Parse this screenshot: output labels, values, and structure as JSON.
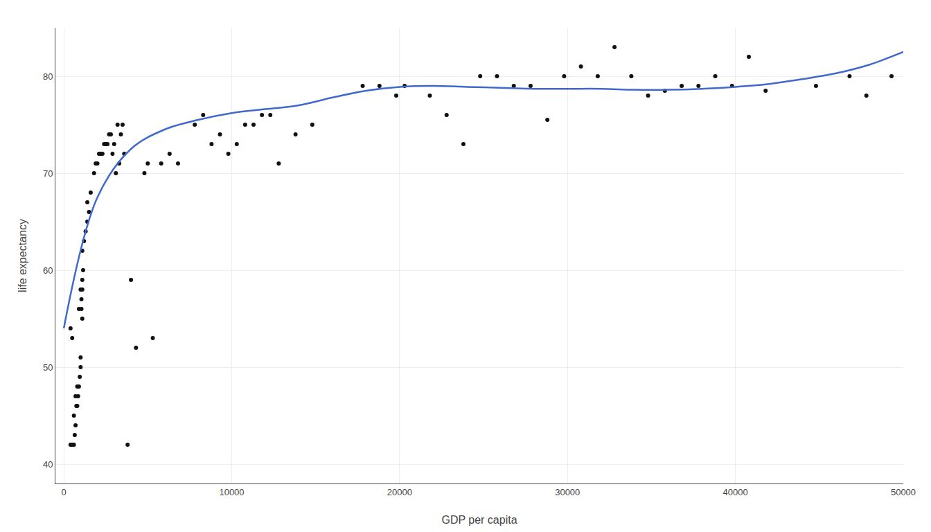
{
  "chart_data": {
    "type": "scatter",
    "xlabel": "GDP per capita",
    "ylabel": "life expectancy",
    "xlim": [
      -500,
      50000
    ],
    "ylim": [
      38,
      85
    ],
    "xticks": [
      0,
      10000,
      20000,
      30000,
      40000,
      50000
    ],
    "yticks": [
      40,
      50,
      60,
      70,
      80
    ],
    "grid": true,
    "series": [
      {
        "type": "scatter",
        "marker": "circle",
        "color": "#111111",
        "x": [
          400,
          500,
          600,
          650,
          700,
          750,
          800,
          850,
          900,
          950,
          1000,
          1000,
          1050,
          1050,
          1100,
          1100,
          1150,
          1100,
          1200,
          1300,
          1400,
          1500,
          1400,
          1600,
          400,
          500,
          600,
          700,
          800,
          900,
          1000,
          1100,
          1800,
          1900,
          2000,
          2100,
          2200,
          2300,
          2400,
          2500,
          2600,
          2700,
          2800,
          2900,
          3000,
          3100,
          3200,
          3300,
          3400,
          3500,
          3600,
          3800,
          4000,
          4300,
          4800,
          5000,
          5300,
          5800,
          6300,
          6800,
          7800,
          8300,
          8800,
          9300,
          9800,
          10300,
          10800,
          11300,
          11800,
          12300,
          12800,
          13800,
          14800,
          17800,
          18800,
          19800,
          20300,
          21800,
          22800,
          23800,
          24800,
          25800,
          26800,
          27800,
          28800,
          29800,
          30800,
          31800,
          32800,
          33800,
          34800,
          35800,
          36800,
          37800,
          38800,
          39800,
          40800,
          41800,
          44800,
          46800,
          47800,
          49300
        ],
        "values": [
          54,
          53,
          42,
          43,
          44,
          46,
          46,
          47,
          48,
          49,
          50,
          51,
          56,
          57,
          58,
          59,
          60,
          62,
          63,
          64,
          65,
          66,
          67,
          68,
          42,
          42,
          45,
          47,
          48,
          56,
          58,
          55,
          70,
          71,
          71,
          72,
          72,
          72,
          73,
          73,
          73,
          74,
          74,
          72,
          73,
          70,
          75,
          71,
          74,
          75,
          72,
          42,
          59,
          52,
          70,
          71,
          53,
          71,
          72,
          71,
          75,
          76,
          73,
          74,
          72,
          73,
          75,
          75,
          76,
          76,
          71,
          74,
          75,
          79,
          79,
          78,
          79,
          78,
          76,
          73,
          80,
          80,
          79,
          79,
          75.5,
          80,
          81,
          80,
          83,
          80,
          78,
          78.5,
          79,
          79,
          80,
          79,
          82,
          78.5,
          79,
          80,
          78,
          80
        ]
      },
      {
        "type": "line",
        "line_style": "solid",
        "color": "#4169cc",
        "x": [
          0,
          2000,
          4000,
          6000,
          8000,
          10000,
          12000,
          14000,
          16000,
          18000,
          20000,
          22000,
          24000,
          26000,
          28000,
          30000,
          32000,
          34000,
          36000,
          38000,
          40000,
          42000,
          44000,
          46000,
          48000,
          50000
        ],
        "values": [
          54.0,
          67.5,
          72.5,
          74.5,
          75.5,
          76.2,
          76.6,
          77.0,
          77.8,
          78.5,
          78.9,
          79.0,
          78.9,
          78.8,
          78.7,
          78.7,
          78.7,
          78.6,
          78.6,
          78.7,
          78.9,
          79.2,
          79.7,
          80.3,
          81.2,
          82.5
        ]
      }
    ]
  }
}
